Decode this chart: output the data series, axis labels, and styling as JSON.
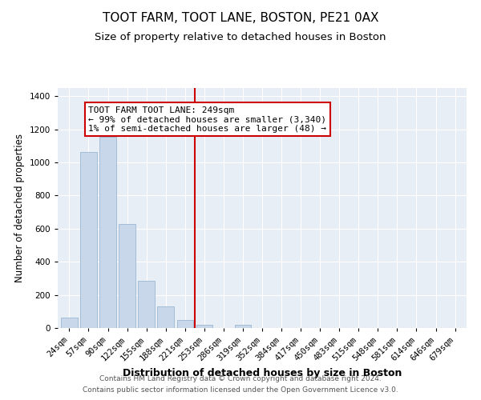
{
  "title": "TOOT FARM, TOOT LANE, BOSTON, PE21 0AX",
  "subtitle": "Size of property relative to detached houses in Boston",
  "xlabel": "Distribution of detached houses by size in Boston",
  "ylabel": "Number of detached properties",
  "bin_labels": [
    "24sqm",
    "57sqm",
    "90sqm",
    "122sqm",
    "155sqm",
    "188sqm",
    "221sqm",
    "253sqm",
    "286sqm",
    "319sqm",
    "352sqm",
    "384sqm",
    "417sqm",
    "450sqm",
    "483sqm",
    "515sqm",
    "548sqm",
    "581sqm",
    "614sqm",
    "646sqm",
    "679sqm"
  ],
  "bar_values": [
    65,
    1065,
    1155,
    630,
    285,
    130,
    48,
    20,
    0,
    20,
    0,
    0,
    0,
    0,
    0,
    0,
    0,
    0,
    0,
    0,
    0
  ],
  "bar_color": "#c8d8ea",
  "bar_edge_color": "#9ab8d0",
  "vline_color": "#cc0000",
  "annotation_title": "TOOT FARM TOOT LANE: 249sqm",
  "annotation_line1": "← 99% of detached houses are smaller (3,340)",
  "annotation_line2": "1% of semi-detached houses are larger (48) →",
  "annotation_box_facecolor": "#ffffff",
  "annotation_box_edgecolor": "#cc0000",
  "ylim": [
    0,
    1450
  ],
  "yticks": [
    0,
    200,
    400,
    600,
    800,
    1000,
    1200,
    1400
  ],
  "footer1": "Contains HM Land Registry data © Crown copyright and database right 2024.",
  "footer2": "Contains public sector information licensed under the Open Government Licence v3.0.",
  "background_color": "#ffffff",
  "plot_bg_color": "#e8eef5",
  "title_fontsize": 11,
  "subtitle_fontsize": 9.5,
  "xlabel_fontsize": 9,
  "ylabel_fontsize": 8.5,
  "tick_fontsize": 7.5,
  "footer_fontsize": 6.5,
  "annotation_fontsize": 8
}
